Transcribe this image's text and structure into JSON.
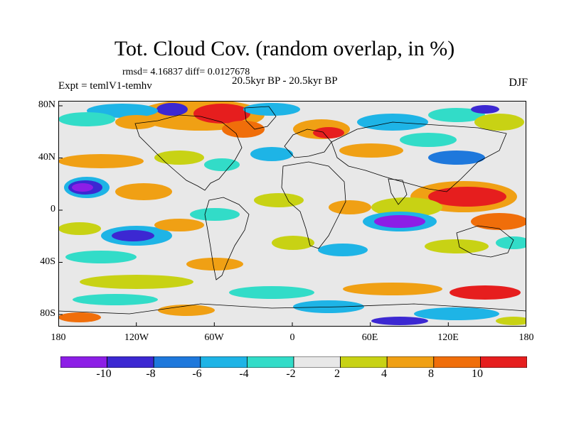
{
  "header": {
    "title": "Tot. Cloud Cov. (random overlap, in %)",
    "stats": "rmsd= 4.16837 diff= 0.0127678",
    "experiment": "Expt = temlV1-temhv",
    "period": "20.5kyr BP - 20.5kyr BP",
    "season": "DJF"
  },
  "map": {
    "projection": "cylindrical equidistant",
    "lon_range": [
      -180,
      180
    ],
    "lat_range": [
      -90,
      90
    ],
    "x_ticks": [
      "180",
      "120W",
      "60W",
      "0",
      "60E",
      "120E",
      "180"
    ],
    "y_ticks": [
      "80N",
      "40N",
      "0",
      "40S",
      "80S"
    ],
    "background_color": "#e8e8e8",
    "coastline_color": "#000000"
  },
  "colorbar": {
    "tick_labels": [
      "-10",
      "-8",
      "-6",
      "-4",
      "-2",
      "2",
      "4",
      "8",
      "10"
    ],
    "bins": [
      {
        "color": "#8c1ee6"
      },
      {
        "color": "#3c28d2"
      },
      {
        "color": "#1e78dc"
      },
      {
        "color": "#1eb4e6"
      },
      {
        "color": "#32dcc8"
      },
      {
        "color": "#e8e8e8"
      },
      {
        "color": "#c8d214"
      },
      {
        "color": "#f0a014"
      },
      {
        "color": "#f06e0a"
      },
      {
        "color": "#e61e1e"
      }
    ]
  }
}
